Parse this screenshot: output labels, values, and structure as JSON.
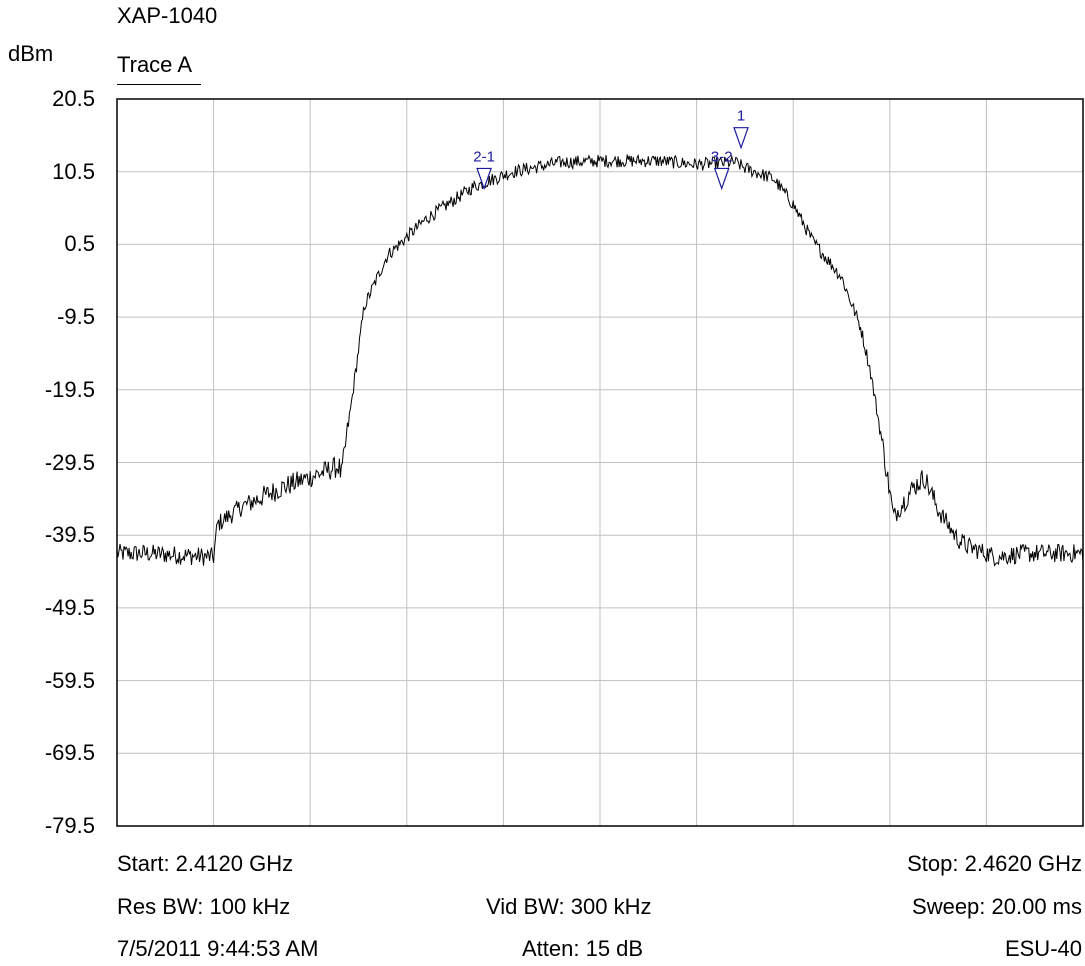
{
  "header": {
    "device": "XAP-1040",
    "unit": "dBm",
    "trace": "Trace A"
  },
  "footer": {
    "start": "Start: 2.4120 GHz",
    "stop": "Stop: 2.4620 GHz",
    "res_bw": "Res BW: 100 kHz",
    "vid_bw": "Vid BW: 300 kHz",
    "sweep": "Sweep: 20.00 ms",
    "timestamp": "7/5/2011 9:44:53 AM",
    "atten": "Atten: 15 dB",
    "instrument": "ESU-40"
  },
  "chart_data": {
    "type": "line",
    "title": "XAP-1040",
    "ylabel": "dBm",
    "xlabel": "",
    "xlim": [
      2.412,
      2.462
    ],
    "ylim": [
      -79.5,
      20.5
    ],
    "y_ticks": [
      "20.5",
      "10.5",
      "0.5",
      "-9.5",
      "-19.5",
      "-29.5",
      "-39.5",
      "-49.5",
      "-59.5",
      "-69.5",
      "-79.5"
    ],
    "x_divisions": 10,
    "grid": true,
    "series": [
      {
        "name": "Trace A",
        "x": [
          2.412,
          2.4135,
          2.417,
          2.4172,
          2.4185,
          2.4205,
          2.4225,
          2.4235,
          2.4236,
          2.4242,
          2.4248,
          2.426,
          2.428,
          2.4305,
          2.4325,
          2.435,
          2.4375,
          2.44,
          2.442,
          2.444,
          2.4445,
          2.446,
          2.447,
          2.448,
          2.4495,
          2.4505,
          2.451,
          2.4515,
          2.4522,
          2.4532,
          2.4538,
          2.4545,
          2.4555,
          2.456,
          2.4575,
          2.459,
          2.4605,
          2.462
        ],
        "y": [
          -42,
          -42,
          -42.5,
          -38,
          -35.5,
          -33,
          -31,
          -30,
          -31.5,
          -20,
          -8,
          -1,
          4,
          8.5,
          10.5,
          11.8,
          12,
          12,
          11.5,
          11.8,
          11,
          9.5,
          6,
          1,
          -4,
          -11,
          -17,
          -25,
          -37,
          -33,
          -31.5,
          -36,
          -40,
          -41,
          -42.5,
          -42,
          -42,
          -42
        ]
      }
    ],
    "markers": [
      {
        "label": "1",
        "x": 2.4443,
        "y": 13.8
      },
      {
        "label": "2-1",
        "x": 2.431,
        "y": 8.2
      },
      {
        "label": "3-2",
        "x": 2.4433,
        "y": 8.2
      }
    ]
  }
}
